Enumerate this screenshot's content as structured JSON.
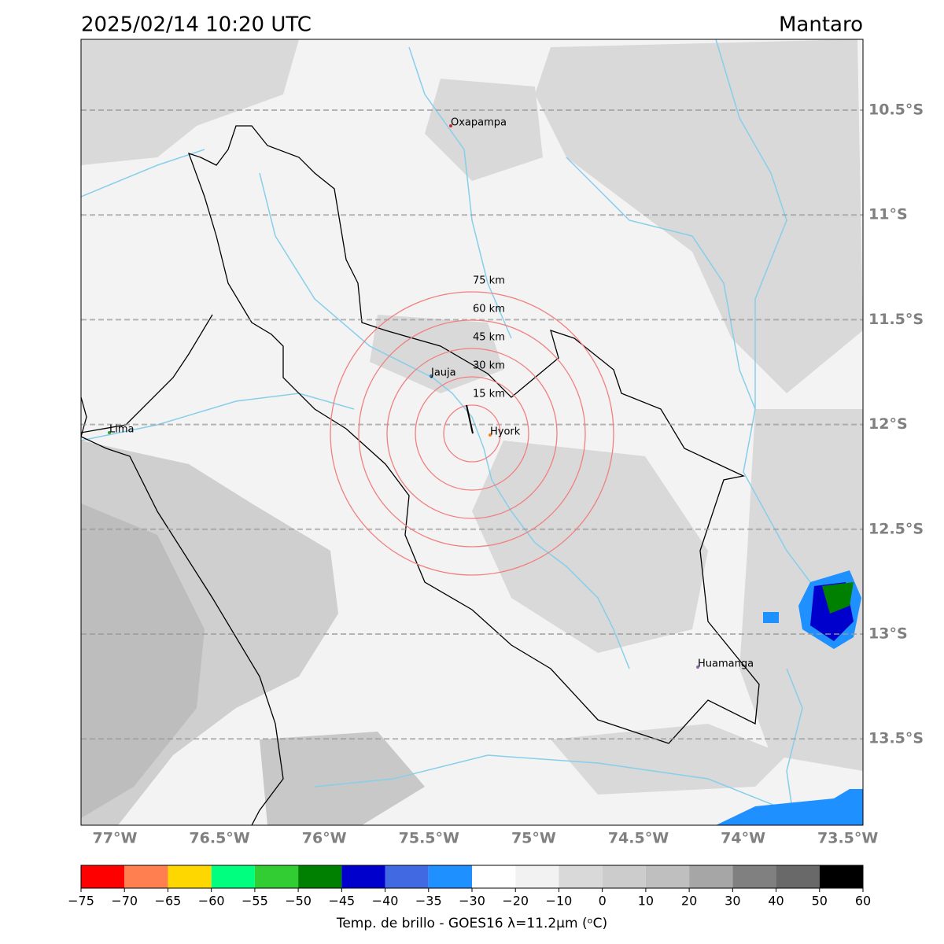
{
  "header": {
    "datetime": "2025/02/14 10:20 UTC",
    "region": "Mantaro"
  },
  "map": {
    "lat_labels": [
      "10.5°S",
      "11°S",
      "11.5°S",
      "12°S",
      "12.5°S",
      "13°S",
      "13.5°S"
    ],
    "lon_labels": [
      "77°W",
      "76.5°W",
      "76°W",
      "75.5°W",
      "75°W",
      "74.5°W",
      "74°W",
      "73.5°W"
    ],
    "cities": [
      {
        "name": "Oxapampa",
        "color": "#d62728"
      },
      {
        "name": "Jauja",
        "color": "#1f77b4"
      },
      {
        "name": "Lima",
        "color": "#2ca02c"
      },
      {
        "name": "Hyork",
        "color": "#ff7f0e"
      },
      {
        "name": "Huamanga",
        "color": "#9467bd"
      }
    ],
    "rings": [
      "15 km",
      "30 km",
      "45 km",
      "60 km",
      "75 km"
    ],
    "ring_color": "#f08080"
  },
  "colorbar": {
    "colors": [
      "#ff0000",
      "#ff7f50",
      "#ffd700",
      "#00ff7f",
      "#32cd32",
      "#008000",
      "#0000cd",
      "#4169e1",
      "#1e90ff",
      "#ffffff",
      "#f2f2f2",
      "#d9d9d9",
      "#cccccc",
      "#bfbfbf",
      "#a6a6a6",
      "#808080",
      "#696969",
      "#000000"
    ],
    "ticks": [
      "−75",
      "−70",
      "−65",
      "−60",
      "−55",
      "−50",
      "−45",
      "−40",
      "−35",
      "−30",
      "−20",
      "−10",
      "0",
      "10",
      "20",
      "30",
      "40",
      "50",
      "60"
    ],
    "label": "Temp. de brillo - GOES16 λ=11.2μm (ᵒC)"
  }
}
